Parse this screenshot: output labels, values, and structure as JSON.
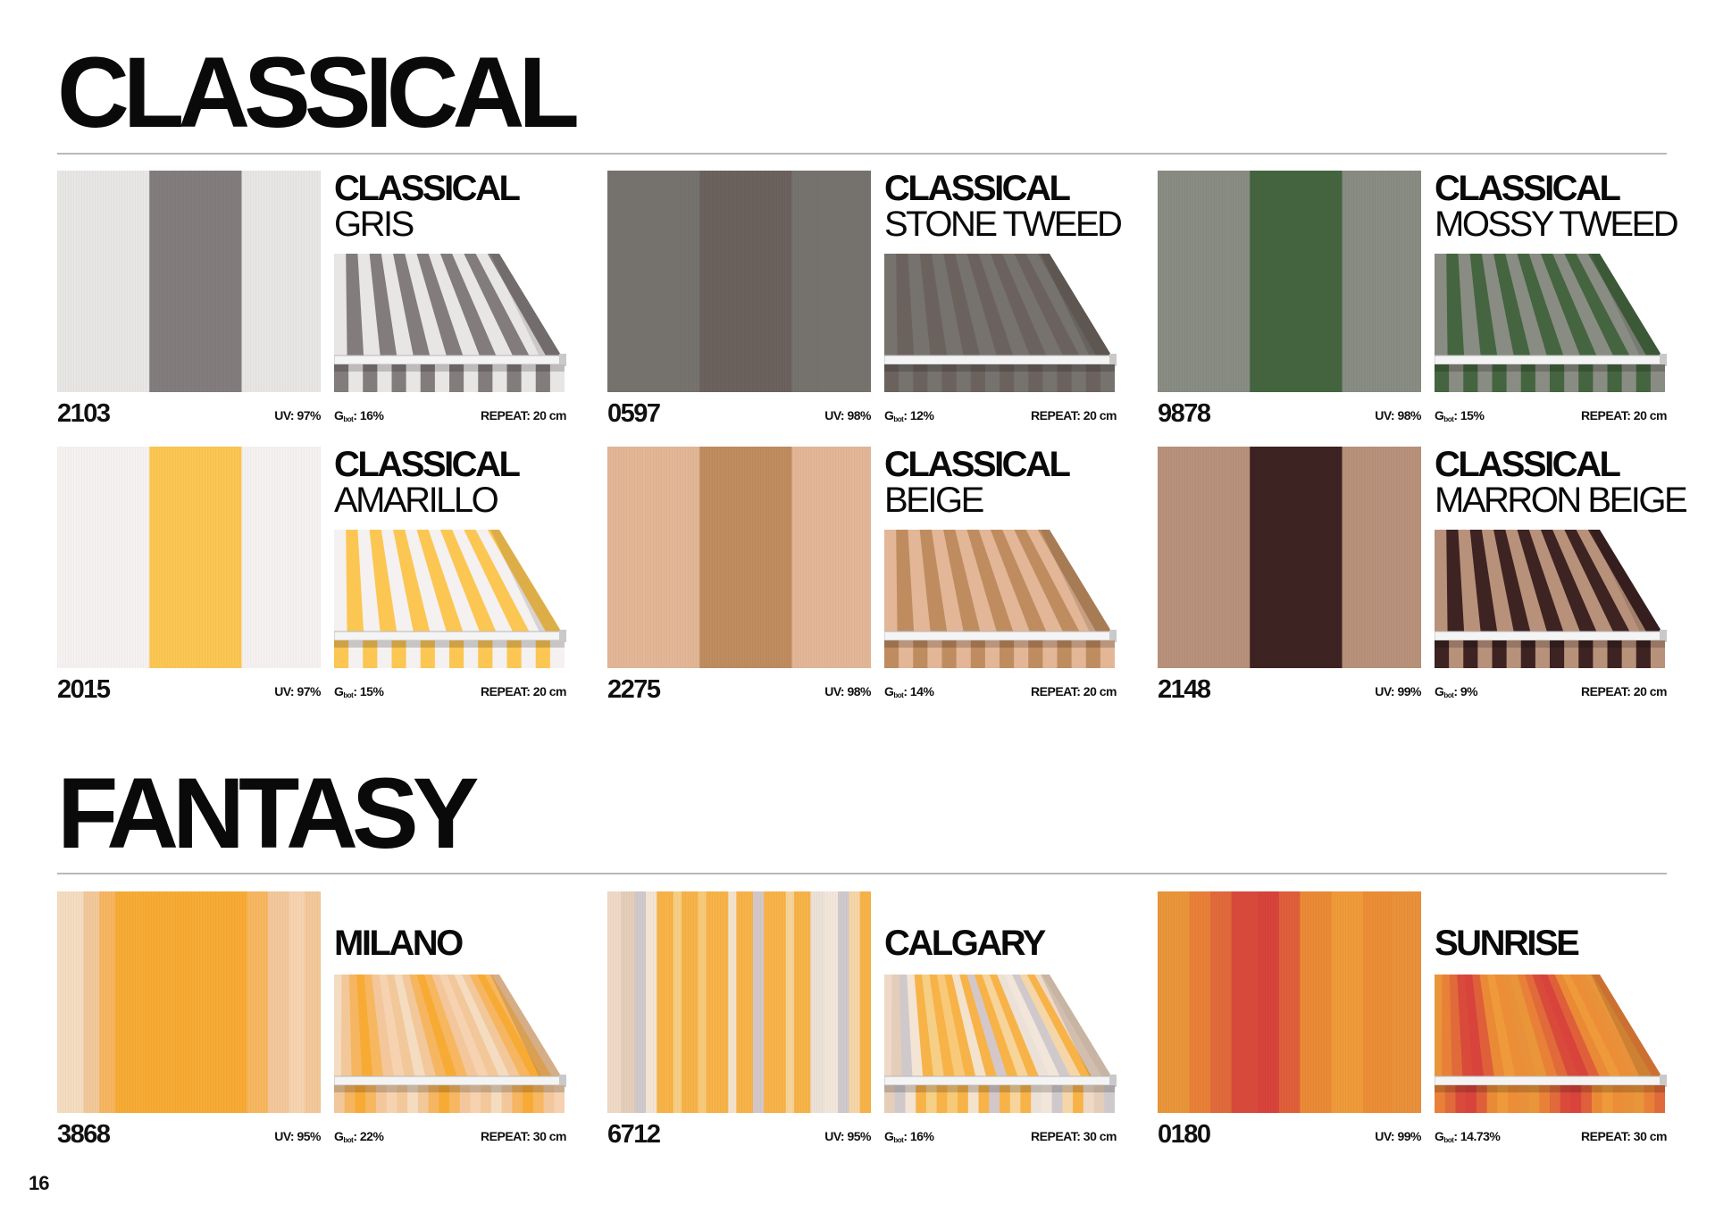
{
  "sections": [
    {
      "title": "CLASSICAL",
      "items": [
        {
          "code": "2103",
          "line1": "CLASSICAL",
          "line2": "GRIS",
          "uv": "UV: 97%",
          "gbot_value": ": 16%",
          "repeat": "REPEAT: 20 cm",
          "pattern": "block",
          "base_color": "#e8e6e4",
          "stripe_color": "#827c7d"
        },
        {
          "code": "0597",
          "line1": "CLASSICAL",
          "line2": "STONE TWEED",
          "uv": "UV: 98%",
          "gbot_value": ": 12%",
          "repeat": "REPEAT: 20 cm",
          "pattern": "block",
          "base_color": "#76726e",
          "stripe_color": "#6c625d"
        },
        {
          "code": "9878",
          "line1": "CLASSICAL",
          "line2": "MOSSY TWEED",
          "uv": "UV: 98%",
          "gbot_value": ": 15%",
          "repeat": "REPEAT: 20 cm",
          "pattern": "block",
          "base_color": "#898c82",
          "stripe_color": "#44653f"
        },
        {
          "code": "2015",
          "line1": "CLASSICAL",
          "line2": "AMARILLO",
          "uv": "UV: 97%",
          "gbot_value": ": 15%",
          "repeat": "REPEAT: 20 cm",
          "pattern": "block",
          "base_color": "#f5f1f0",
          "stripe_color": "#fcc653"
        },
        {
          "code": "2275",
          "line1": "CLASSICAL",
          "line2": "BEIGE",
          "uv": "UV: 98%",
          "gbot_value": ": 14%",
          "repeat": "REPEAT: 20 cm",
          "pattern": "block",
          "base_color": "#e2b696",
          "stripe_color": "#bf8c60"
        },
        {
          "code": "2148",
          "line1": "CLASSICAL",
          "line2": "MARRON BEIGE",
          "uv": "UV: 99%",
          "gbot_value": ": 9%",
          "repeat": "REPEAT: 20 cm",
          "pattern": "block",
          "base_color": "#b8917a",
          "stripe_color": "#3d2322"
        }
      ]
    },
    {
      "title": "FANTASY",
      "items": [
        {
          "code": "3868",
          "line1": "MILANO",
          "line2": "",
          "uv": "UV: 95%",
          "gbot_value": ": 22%",
          "repeat": "REPEAT: 30 cm",
          "pattern": "milano",
          "base_color": "#f7ab35",
          "stripe_color": "#f3c79b"
        },
        {
          "code": "6712",
          "line1": "CALGARY",
          "line2": "",
          "uv": "UV: 95%",
          "gbot_value": ": 16%",
          "repeat": "REPEAT: 30 cm",
          "pattern": "calgary",
          "base_color": "#f7b348",
          "stripe_color": "#cfc9cc"
        },
        {
          "code": "0180",
          "line1": "SUNRISE",
          "line2": "",
          "uv": "UV: 99%",
          "gbot_value": ": 14.73%",
          "repeat": "REPEAT: 30 cm",
          "pattern": "sunrise",
          "base_color": "#ea8d35",
          "stripe_color": "#d8433b"
        }
      ]
    }
  ],
  "gbot_label": "G",
  "gbot_sub": "bot",
  "page_number": "16"
}
